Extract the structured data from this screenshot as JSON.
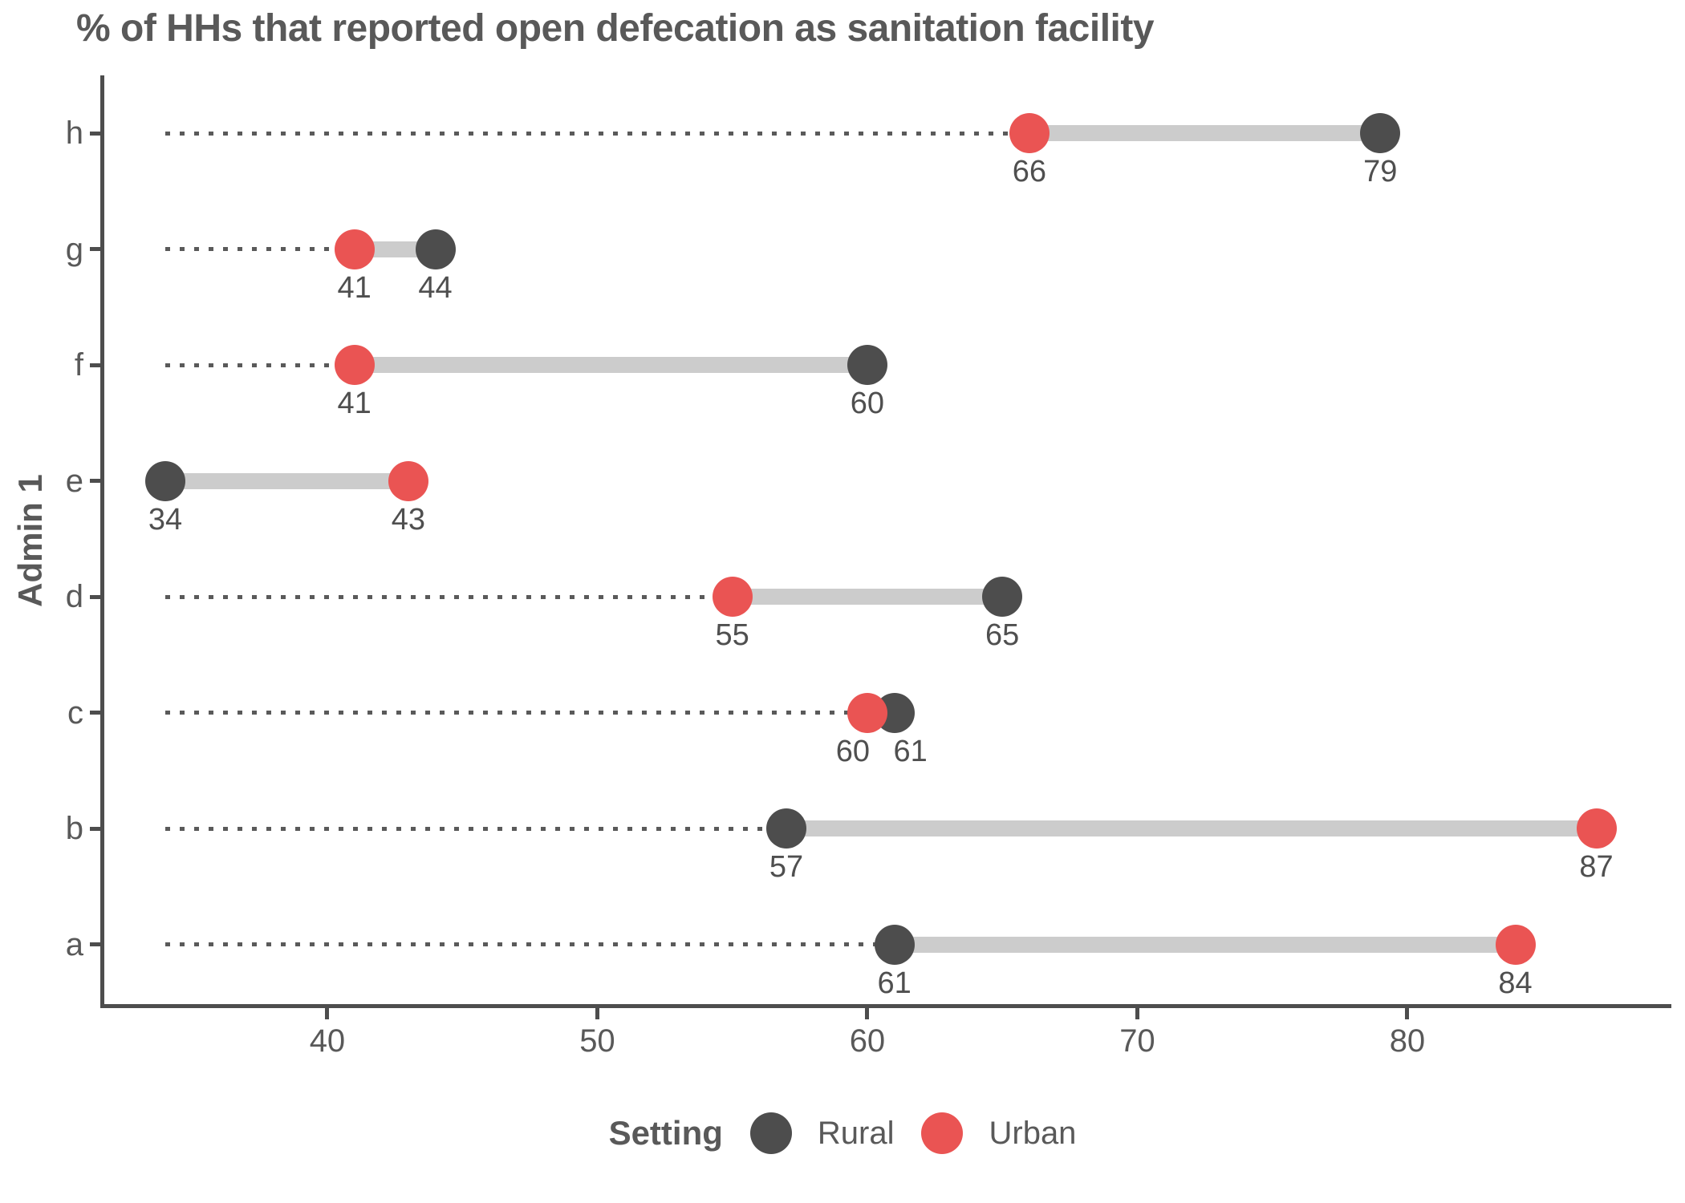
{
  "chart_data": {
    "type": "dumbbell",
    "title": "% of HHs that reported open defecation as sanitation facility",
    "xlabel": "",
    "ylabel": "Admin 1",
    "x_ticks": [
      40,
      50,
      60,
      70,
      80
    ],
    "x_domain": [
      31.74,
      89.63
    ],
    "leader_origin": 34,
    "grid": false,
    "value_labels": true,
    "categories_top_to_bottom": [
      "h",
      "g",
      "f",
      "e",
      "d",
      "c",
      "b",
      "a"
    ],
    "rows": [
      {
        "category": "h",
        "rural": 79,
        "urban": 66
      },
      {
        "category": "g",
        "rural": 44,
        "urban": 41
      },
      {
        "category": "f",
        "rural": 60,
        "urban": 41
      },
      {
        "category": "e",
        "rural": 34,
        "urban": 43
      },
      {
        "category": "d",
        "rural": 65,
        "urban": 55
      },
      {
        "category": "c",
        "rural": 61,
        "urban": 60
      },
      {
        "category": "b",
        "rural": 57,
        "urban": 87
      },
      {
        "category": "a",
        "rural": 61,
        "urban": 84
      }
    ],
    "legend": {
      "title": "Setting",
      "position": "bottom",
      "entries": [
        {
          "name": "Rural",
          "color": "#4d4d4d"
        },
        {
          "name": "Urban",
          "color": "#ea5453"
        }
      ]
    },
    "colors": {
      "rural_dot": "#4d4d4d",
      "urban_dot": "#ea5453",
      "connector": "#cccccc",
      "leader_dots": "#5a5a5a",
      "axis": "#4d4d4d",
      "text": "#595959"
    }
  }
}
